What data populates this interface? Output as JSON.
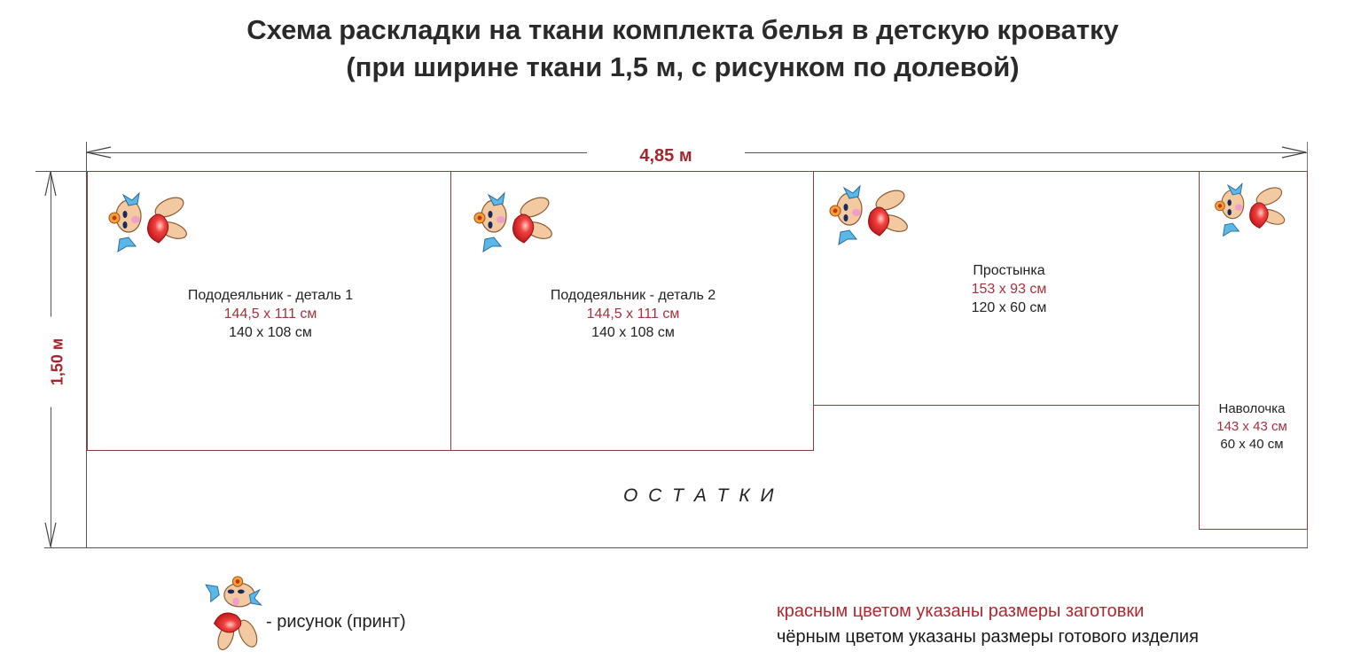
{
  "title": {
    "line1": "Схема раскладки на ткани комплекта белья в детскую кроватку",
    "line2": "(при ширине ткани 1,5 м, с рисунком по долевой)"
  },
  "dimensions": {
    "length": "4,85 м",
    "width": "1,50 м"
  },
  "pieces": [
    {
      "name": "Пододеяльник - деталь 1",
      "cut_size": "144,5 x 111 см",
      "finished_size": "140 x 108 см"
    },
    {
      "name": "Пододеяльник - деталь 2",
      "cut_size": "144,5 x 111 см",
      "finished_size": "140 x 108 см"
    },
    {
      "name": "Простынка",
      "cut_size": "153 x 93 см",
      "finished_size": "120 x 60 см"
    },
    {
      "name": "Наволочка",
      "cut_size": "143 x 43 см",
      "finished_size": "60 x 40 см"
    }
  ],
  "leftovers": "О С Т А Т К И",
  "legend": {
    "print_icon": "bunny-with-heart-icon",
    "print_label": "- рисунок (принт)",
    "red_note": "красным цветом указаны размеры заготовки",
    "black_note": "чёрным цветом указаны размеры готового изделия"
  },
  "colors": {
    "cut_size": "#a3333d",
    "finished_size": "#222222",
    "piece_outline": "#8e3b3b"
  }
}
